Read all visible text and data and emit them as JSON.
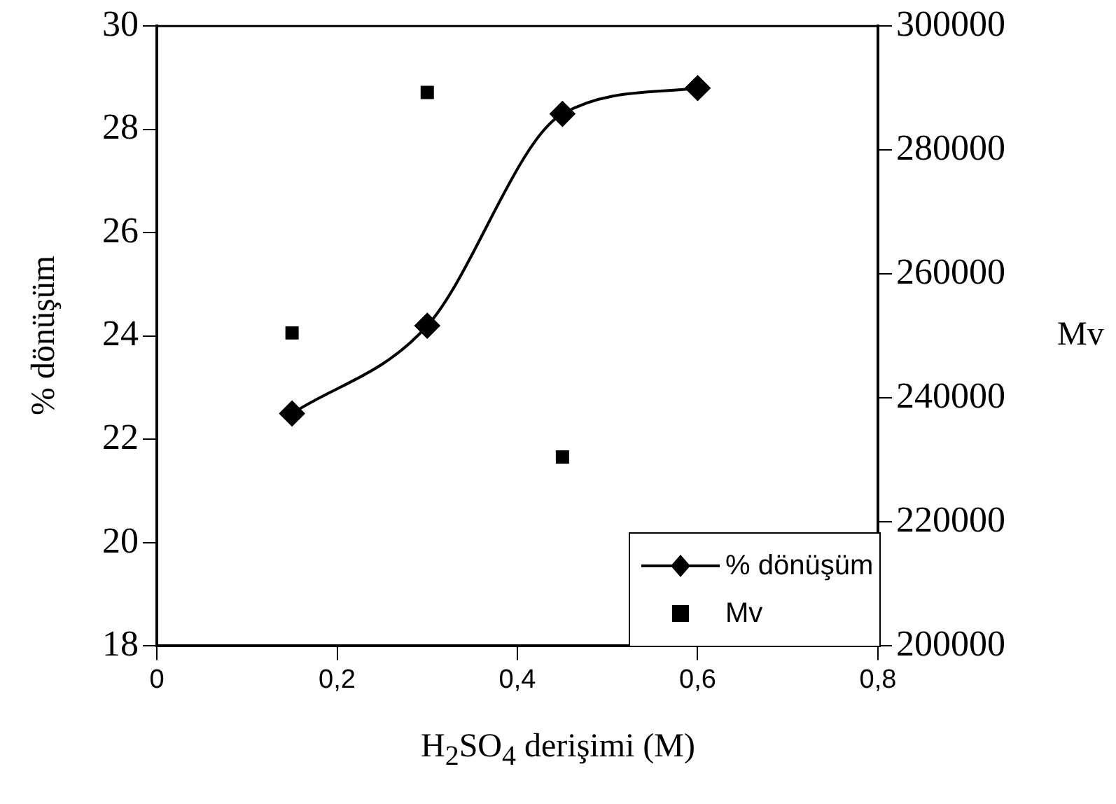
{
  "chart_data": {
    "type": "line",
    "xlabel": "H$_{2}$SO$_{4}$ derişimi (M)",
    "ylabel": "% dönüşüm",
    "y2label": "Mv",
    "x": [
      0.15,
      0.3,
      0.45,
      0.6
    ],
    "series": [
      {
        "name": "% dönüşüm",
        "color": "#000000",
        "marker": "diamond",
        "values": [
          22.5,
          24.2,
          28.3,
          28.8
        ]
      },
      {
        "name": "Mv",
        "type": "scatter",
        "axis": "y2",
        "color": "#000000",
        "marker": "square",
        "values": [
          250500,
          289300,
          230500,
          null
        ]
      }
    ],
    "xlim": [
      0,
      0.8
    ],
    "xticks": [
      0,
      {
        "value": 0.2,
        "label": "0,2"
      },
      {
        "value": 0.4,
        "label": "0,4"
      },
      {
        "value": 0.6,
        "label": "0,6"
      },
      {
        "value": 0.8,
        "label": "0,8"
      }
    ],
    "ylim": [
      18,
      30
    ],
    "yticks": [
      18,
      20,
      22,
      24,
      26,
      28,
      30
    ],
    "y2lim": [
      200000,
      300000
    ],
    "y2ticks": [
      200000,
      220000,
      240000,
      260000,
      280000,
      300000
    ],
    "grid": false,
    "legend": "bottom right"
  }
}
